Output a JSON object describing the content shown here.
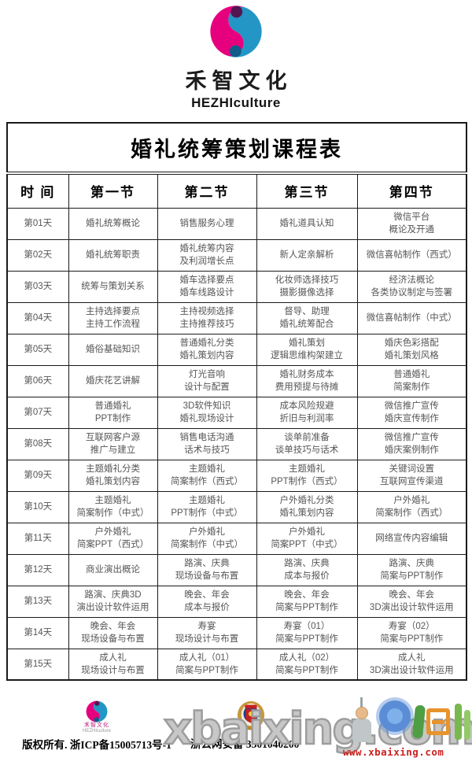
{
  "brand": {
    "name": "禾智文化",
    "name_en": "HEZHIculture"
  },
  "schedule": {
    "title": "婚礼统筹策划课程表",
    "columns": [
      "时  间",
      "第一节",
      "第二节",
      "第三节",
      "第四节"
    ],
    "rows": [
      {
        "day": "第01天",
        "sessions": [
          "婚礼统筹概论",
          "销售服务心理",
          "婚礼道具认知",
          "微信平台\n概论及开通"
        ]
      },
      {
        "day": "第02天",
        "sessions": [
          "婚礼统筹职责",
          "婚礼统筹内容\n及利润增长点",
          "新人定亲解析",
          "微信喜帖制作（西式）"
        ]
      },
      {
        "day": "第03天",
        "sessions": [
          "统筹与策划关系",
          "婚车选择要点\n婚车线路设计",
          "化妆师选择技巧\n摄影摄像选择",
          "经济法概论\n各类协议制定与签署"
        ]
      },
      {
        "day": "第04天",
        "sessions": [
          "主持选择要点\n主持工作流程",
          "主持视频选择\n主持推荐技巧",
          "督导、助理\n婚礼统筹配合",
          "微信喜帖制作（中式）"
        ]
      },
      {
        "day": "第05天",
        "sessions": [
          "婚俗基础知识",
          "普通婚礼分类\n婚礼策划内容",
          "婚礼策划\n逻辑思维构架建立",
          "婚庆色彩搭配\n婚礼策划风格"
        ]
      },
      {
        "day": "第06天",
        "sessions": [
          "婚庆花艺讲解",
          "灯光音响\n设计与配置",
          "婚礼财务成本\n费用预提与待摊",
          "普通婚礼\n简案制作"
        ]
      },
      {
        "day": "第07天",
        "sessions": [
          "普通婚礼\nPPT制作",
          "3D软件知识\n婚礼现场设计",
          "成本风险规避\n折旧与利润率",
          "微信推广宣传\n婚庆宣传制作"
        ]
      },
      {
        "day": "第08天",
        "sessions": [
          "互联网客户源\n推广与建立",
          "销售电话沟通\n话术与技巧",
          "谈单前准备\n谈单技巧与话术",
          "微信推广宣传\n婚庆案例制作"
        ]
      },
      {
        "day": "第09天",
        "sessions": [
          "主题婚礼分类\n婚礼策划内容",
          "主题婚礼\n简案制作（西式）",
          "主题婚礼\nPPT制作（西式）",
          "关键词设置\n互联网宣传渠道"
        ]
      },
      {
        "day": "第10天",
        "sessions": [
          "主题婚礼\n简案制作（中式）",
          "主题婚礼\nPPT制作（中式）",
          "户外婚礼分类\n婚礼策划内容",
          "户外婚礼\n简案制作（西式）"
        ]
      },
      {
        "day": "第11天",
        "sessions": [
          "户外婚礼\n简案PPT（西式）",
          "户外婚礼\n简案制作（中式）",
          "户外婚礼\n简案PPT（中式）",
          "网络宣传内容编辑"
        ]
      },
      {
        "day": "第12天",
        "sessions": [
          "商业演出概论",
          "路演、庆典\n现场设备与布置",
          "路演、庆典\n成本与报价",
          "路演、庆典\n简案与PPT制作"
        ]
      },
      {
        "day": "第13天",
        "sessions": [
          "路演、庆典3D\n演出设计软件运用",
          "晚会、年会\n成本与报价",
          "晚会、年会\n简案与PPT制作",
          "晚会、年会\n3D演出设计软件运用"
        ]
      },
      {
        "day": "第14天",
        "sessions": [
          "晚会、年会\n现场设备与布置",
          "寿宴\n现场设计与布置",
          "寿宴（01）\n简案与PPT制作",
          "寿宴（02）\n简案与PPT制作"
        ]
      },
      {
        "day": "第15天",
        "sessions": [
          "成人礼\n现场设计与布置",
          "成人礼（01）\n简案与PPT制作",
          "成人礼（02）\n简案与PPT制作",
          "成人礼\n3D演出设计软件运用"
        ]
      }
    ]
  },
  "footer": {
    "brand_small": "禾智文化",
    "brand_small_en": "HEZHIculture",
    "copyright": "版权所有. 浙ICP备15005713号-1",
    "security_text": "浙公网安备 3301040200"
  },
  "watermark": {
    "big_text": "xbaixing.com",
    "url_text": "www.xbaixing.com"
  },
  "colors": {
    "logo_pink": "#e6007e",
    "logo_purple": "#551550",
    "logo_blue": "#2396c5",
    "logo_darkblue": "#0f5d88",
    "watermark_gray": "#9d9d9d",
    "url_red": "#cc2020"
  }
}
